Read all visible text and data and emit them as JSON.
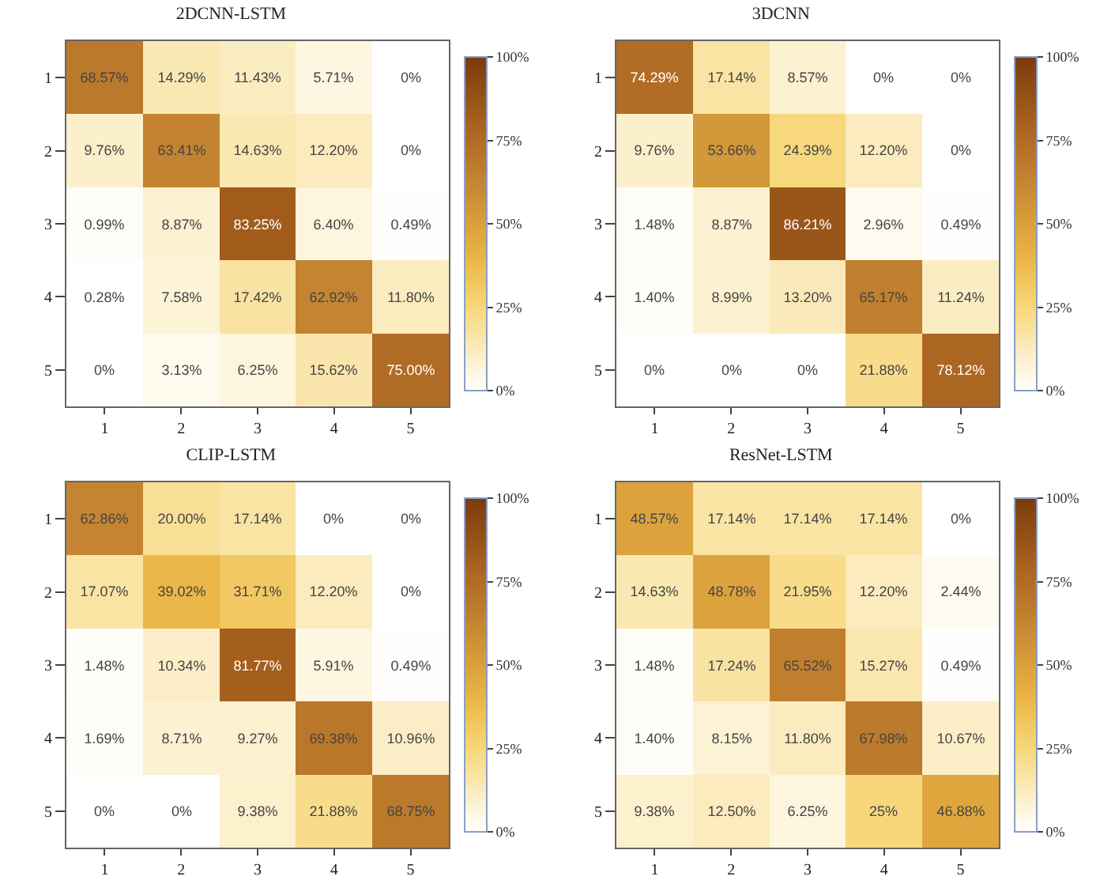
{
  "chart_data": [
    {
      "type": "heatmap",
      "title": "2DCNN-LSTM",
      "categories": [
        "1",
        "2",
        "3",
        "4",
        "5"
      ],
      "y_categories": [
        "1",
        "2",
        "3",
        "4",
        "5"
      ],
      "cells": [
        [
          68.57,
          14.29,
          11.43,
          5.71,
          0
        ],
        [
          9.76,
          63.41,
          14.63,
          12.2,
          0
        ],
        [
          0.99,
          8.87,
          83.25,
          6.4,
          0.49
        ],
        [
          0.28,
          7.58,
          17.42,
          62.92,
          11.8
        ],
        [
          0,
          3.13,
          6.25,
          15.62,
          75
        ]
      ],
      "cell_labels": [
        [
          "68.57%",
          "14.29%",
          "11.43%",
          "5.71%",
          "0%"
        ],
        [
          "9.76%",
          "63.41%",
          "14.63%",
          "12.20%",
          "0%"
        ],
        [
          "0.99%",
          "8.87%",
          "83.25%",
          "6.40%",
          "0.49%"
        ],
        [
          "0.28%",
          "7.58%",
          "17.42%",
          "62.92%",
          "11.80%"
        ],
        [
          "0%",
          "3.13%",
          "6.25%",
          "15.62%",
          "75.00%"
        ]
      ],
      "clim": [
        0,
        100
      ],
      "cticks": [
        {
          "value": 0,
          "label": "0%"
        },
        {
          "value": 25,
          "label": "25%"
        },
        {
          "value": 50,
          "label": "50%"
        },
        {
          "value": 75,
          "label": "75%"
        },
        {
          "value": 100,
          "label": "100%"
        }
      ]
    },
    {
      "type": "heatmap",
      "title": "3DCNN",
      "categories": [
        "1",
        "2",
        "3",
        "4",
        "5"
      ],
      "y_categories": [
        "1",
        "2",
        "3",
        "4",
        "5"
      ],
      "cells": [
        [
          74.29,
          17.14,
          8.57,
          0,
          0
        ],
        [
          9.76,
          53.66,
          24.39,
          12.2,
          0
        ],
        [
          1.48,
          8.87,
          86.21,
          2.96,
          0.49
        ],
        [
          1.4,
          8.99,
          13.2,
          65.17,
          11.24
        ],
        [
          0,
          0,
          0,
          21.88,
          78.12
        ]
      ],
      "cell_labels": [
        [
          "74.29%",
          "17.14%",
          "8.57%",
          "0%",
          "0%"
        ],
        [
          "9.76%",
          "53.66%",
          "24.39%",
          "12.20%",
          "0%"
        ],
        [
          "1.48%",
          "8.87%",
          "86.21%",
          "2.96%",
          "0.49%"
        ],
        [
          "1.40%",
          "8.99%",
          "13.20%",
          "65.17%",
          "11.24%"
        ],
        [
          "0%",
          "0%",
          "0%",
          "21.88%",
          "78.12%"
        ]
      ],
      "clim": [
        0,
        100
      ],
      "cticks": [
        {
          "value": 0,
          "label": "0%"
        },
        {
          "value": 25,
          "label": "25%"
        },
        {
          "value": 50,
          "label": "50%"
        },
        {
          "value": 75,
          "label": "75%"
        },
        {
          "value": 100,
          "label": "100%"
        }
      ]
    },
    {
      "type": "heatmap",
      "title": "CLIP-LSTM",
      "categories": [
        "1",
        "2",
        "3",
        "4",
        "5"
      ],
      "y_categories": [
        "1",
        "2",
        "3",
        "4",
        "5"
      ],
      "cells": [
        [
          62.86,
          20,
          17.14,
          0,
          0
        ],
        [
          17.07,
          39.02,
          31.71,
          12.2,
          0
        ],
        [
          1.48,
          10.34,
          81.77,
          5.91,
          0.49
        ],
        [
          1.69,
          8.71,
          9.27,
          69.38,
          10.96
        ],
        [
          0,
          0,
          9.38,
          21.88,
          68.75
        ]
      ],
      "cell_labels": [
        [
          "62.86%",
          "20.00%",
          "17.14%",
          "0%",
          "0%"
        ],
        [
          "17.07%",
          "39.02%",
          "31.71%",
          "12.20%",
          "0%"
        ],
        [
          "1.48%",
          "10.34%",
          "81.77%",
          "5.91%",
          "0.49%"
        ],
        [
          "1.69%",
          "8.71%",
          "9.27%",
          "69.38%",
          "10.96%"
        ],
        [
          "0%",
          "0%",
          "9.38%",
          "21.88%",
          "68.75%"
        ]
      ],
      "clim": [
        0,
        100
      ],
      "cticks": [
        {
          "value": 0,
          "label": "0%"
        },
        {
          "value": 25,
          "label": "25%"
        },
        {
          "value": 50,
          "label": "50%"
        },
        {
          "value": 75,
          "label": "75%"
        },
        {
          "value": 100,
          "label": "100%"
        }
      ]
    },
    {
      "type": "heatmap",
      "title": "ResNet-LSTM",
      "categories": [
        "1",
        "2",
        "3",
        "4",
        "5"
      ],
      "y_categories": [
        "1",
        "2",
        "3",
        "4",
        "5"
      ],
      "cells": [
        [
          48.57,
          17.14,
          17.14,
          17.14,
          0
        ],
        [
          14.63,
          48.78,
          21.95,
          12.2,
          2.44
        ],
        [
          1.48,
          17.24,
          65.52,
          15.27,
          0.49
        ],
        [
          1.4,
          8.15,
          11.8,
          67.98,
          10.67
        ],
        [
          9.38,
          12.5,
          6.25,
          25,
          46.88
        ]
      ],
      "cell_labels": [
        [
          "48.57%",
          "17.14%",
          "17.14%",
          "17.14%",
          "0%"
        ],
        [
          "14.63%",
          "48.78%",
          "21.95%",
          "12.20%",
          "2.44%"
        ],
        [
          "1.48%",
          "17.24%",
          "65.52%",
          "15.27%",
          "0.49%"
        ],
        [
          "1.40%",
          "8.15%",
          "11.80%",
          "67.98%",
          "10.67%"
        ],
        [
          "9.38%",
          "12.50%",
          "6.25%",
          "25%",
          "46.88%"
        ]
      ],
      "clim": [
        0,
        100
      ],
      "cticks": [
        {
          "value": 0,
          "label": "0%"
        },
        {
          "value": 25,
          "label": "25%"
        },
        {
          "value": 50,
          "label": "50%"
        },
        {
          "value": 75,
          "label": "75%"
        },
        {
          "value": 100,
          "label": "100%"
        }
      ]
    }
  ]
}
